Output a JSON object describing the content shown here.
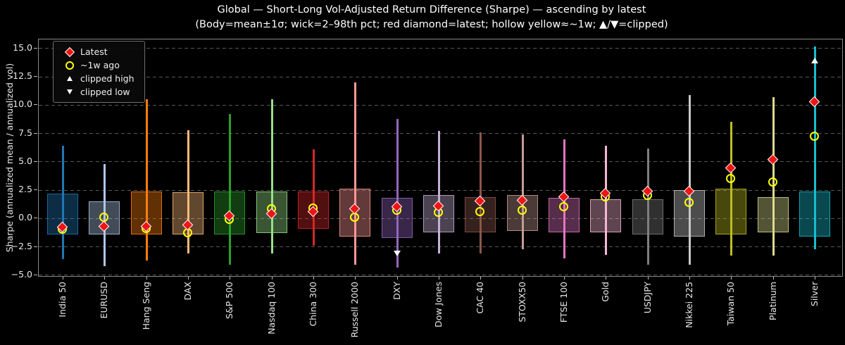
{
  "figure": {
    "title_line1": "Global — Short-Long Vol-Adjusted Return Difference (Sharpe) — ascending by latest",
    "title_line2": "(Body=mean±1σ; wick=2–98th pct; red diamond=latest; hollow yellow≈~1w; ▲/▼=clipped)",
    "background": "#000000"
  },
  "chart_data": {
    "type": "candlestick-range",
    "title": "Global — Short-Long Vol-Adjusted Return Difference (Sharpe) — ascending by latest",
    "subtitle": "(Body=mean±1σ; wick=2–98th pct; red diamond=latest; hollow yellow≈~1w; ▲/▼=clipped)",
    "ylabel": "Sharpe (annualized mean / annualized vol)",
    "xlabel": "",
    "ylim": [
      -5.2,
      15.8
    ],
    "yticks": [
      15.0,
      12.5,
      10.0,
      7.5,
      5.0,
      2.5,
      0.0,
      -2.5,
      -5.0
    ],
    "ytick_labels": [
      "15.0",
      "12.5",
      "10.0",
      "7.5",
      "5.0",
      "2.5",
      "0.0",
      "−2.5",
      "−5.0"
    ],
    "grid": "dashed-horizontal",
    "marker_colors": {
      "latest": "#ee1414",
      "week_ago": "#ffff00",
      "clipped": "#ffffff"
    },
    "legend": {
      "position": "upper-left",
      "items": [
        {
          "marker": "diamond",
          "color": "#ee1414",
          "label": "Latest"
        },
        {
          "marker": "open-circle",
          "color": "#ffff00",
          "label": "~1w ago"
        },
        {
          "marker": "triangle-up",
          "color": "#ffffff",
          "label": "clipped high"
        },
        {
          "marker": "triangle-down",
          "color": "#ffffff",
          "label": "clipped low"
        }
      ]
    },
    "instruments": [
      {
        "name": "India 50",
        "color": "#1f77b4",
        "body": [
          -1.4,
          2.2
        ],
        "wick": [
          -3.6,
          6.4
        ],
        "latest": -0.8,
        "week_ago": -1.0,
        "clipped_high": false,
        "clipped_low": false
      },
      {
        "name": "EURUSD",
        "color": "#aec7e8",
        "body": [
          -1.4,
          1.5
        ],
        "wick": [
          -4.2,
          4.8
        ],
        "latest": -0.7,
        "week_ago": 0.1,
        "clipped_high": false,
        "clipped_low": false
      },
      {
        "name": "Hang Seng",
        "color": "#ff7f0e",
        "body": [
          -1.4,
          2.4
        ],
        "wick": [
          -3.7,
          10.5
        ],
        "latest": -0.7,
        "week_ago": -0.9,
        "clipped_high": false,
        "clipped_low": false
      },
      {
        "name": "DAX",
        "color": "#ffbb78",
        "body": [
          -1.4,
          2.3
        ],
        "wick": [
          -3.1,
          7.8
        ],
        "latest": -0.6,
        "week_ago": -1.3,
        "clipped_high": false,
        "clipped_low": false
      },
      {
        "name": "S&P 500",
        "color": "#2ca02c",
        "body": [
          -1.4,
          2.4
        ],
        "wick": [
          -4.1,
          9.2
        ],
        "latest": 0.2,
        "week_ago": -0.1,
        "clipped_high": false,
        "clipped_low": false
      },
      {
        "name": "Nasdaq 100",
        "color": "#98df8a",
        "body": [
          -1.3,
          2.4
        ],
        "wick": [
          -3.1,
          10.5
        ],
        "latest": 0.4,
        "week_ago": 0.8,
        "clipped_high": false,
        "clipped_low": false
      },
      {
        "name": "China 300",
        "color": "#d62728",
        "body": [
          -0.9,
          2.4
        ],
        "wick": [
          -2.4,
          6.1
        ],
        "latest": 0.6,
        "week_ago": 0.9,
        "clipped_high": false,
        "clipped_low": false
      },
      {
        "name": "Russell 2000",
        "color": "#ff9896",
        "body": [
          -1.6,
          2.6
        ],
        "wick": [
          -4.1,
          12.0
        ],
        "latest": 0.8,
        "week_ago": 0.1,
        "clipped_high": false,
        "clipped_low": false
      },
      {
        "name": "DXY",
        "color": "#9467bd",
        "body": [
          -1.7,
          1.8
        ],
        "wick": [
          -4.3,
          8.8
        ],
        "latest": 1.0,
        "week_ago": 0.7,
        "clipped_high": false,
        "clipped_low": true
      },
      {
        "name": "Dow Jones",
        "color": "#c5b0d5",
        "body": [
          -1.2,
          2.1
        ],
        "wick": [
          -3.1,
          7.7
        ],
        "latest": 1.1,
        "week_ago": 0.5,
        "clipped_high": false,
        "clipped_low": false
      },
      {
        "name": "CAC 40",
        "color": "#8c564b",
        "body": [
          -1.2,
          1.9
        ],
        "wick": [
          -3.1,
          7.6
        ],
        "latest": 1.5,
        "week_ago": 0.6,
        "clipped_high": false,
        "clipped_low": false
      },
      {
        "name": "STOXX50",
        "color": "#c49c94",
        "body": [
          -1.1,
          2.1
        ],
        "wick": [
          -2.7,
          7.4
        ],
        "latest": 1.6,
        "week_ago": 0.7,
        "clipped_high": false,
        "clipped_low": false
      },
      {
        "name": "FTSE 100",
        "color": "#e377c2",
        "body": [
          -1.2,
          1.8
        ],
        "wick": [
          -3.5,
          7.0
        ],
        "latest": 1.9,
        "week_ago": 1.0,
        "clipped_high": false,
        "clipped_low": false
      },
      {
        "name": "Gold",
        "color": "#f7b6d2",
        "body": [
          -1.2,
          1.7
        ],
        "wick": [
          -3.2,
          6.4
        ],
        "latest": 2.2,
        "week_ago": 1.9,
        "clipped_high": false,
        "clipped_low": false
      },
      {
        "name": "USDJPY",
        "color": "#7f7f7f",
        "body": [
          -1.4,
          1.7
        ],
        "wick": [
          -4.1,
          6.2
        ],
        "latest": 2.4,
        "week_ago": 2.0,
        "clipped_high": false,
        "clipped_low": false
      },
      {
        "name": "Nikkei 225",
        "color": "#c7c7c7",
        "body": [
          -1.6,
          2.5
        ],
        "wick": [
          -4.1,
          10.9
        ],
        "latest": 2.4,
        "week_ago": 1.4,
        "clipped_high": false,
        "clipped_low": false
      },
      {
        "name": "Taiwan 50",
        "color": "#bcbd22",
        "body": [
          -1.4,
          2.6
        ],
        "wick": [
          -3.3,
          8.5
        ],
        "latest": 4.4,
        "week_ago": 3.5,
        "clipped_high": false,
        "clipped_low": false
      },
      {
        "name": "Platinum",
        "color": "#dbdb8d",
        "body": [
          -1.2,
          1.9
        ],
        "wick": [
          -3.3,
          10.7
        ],
        "latest": 5.2,
        "week_ago": 3.2,
        "clipped_high": false,
        "clipped_low": false
      },
      {
        "name": "Silver",
        "color": "#17becf",
        "body": [
          -1.6,
          2.4
        ],
        "wick": [
          -2.7,
          15.2
        ],
        "latest": 10.3,
        "week_ago": 7.2,
        "clipped_high": true,
        "clipped_low": false
      }
    ]
  }
}
